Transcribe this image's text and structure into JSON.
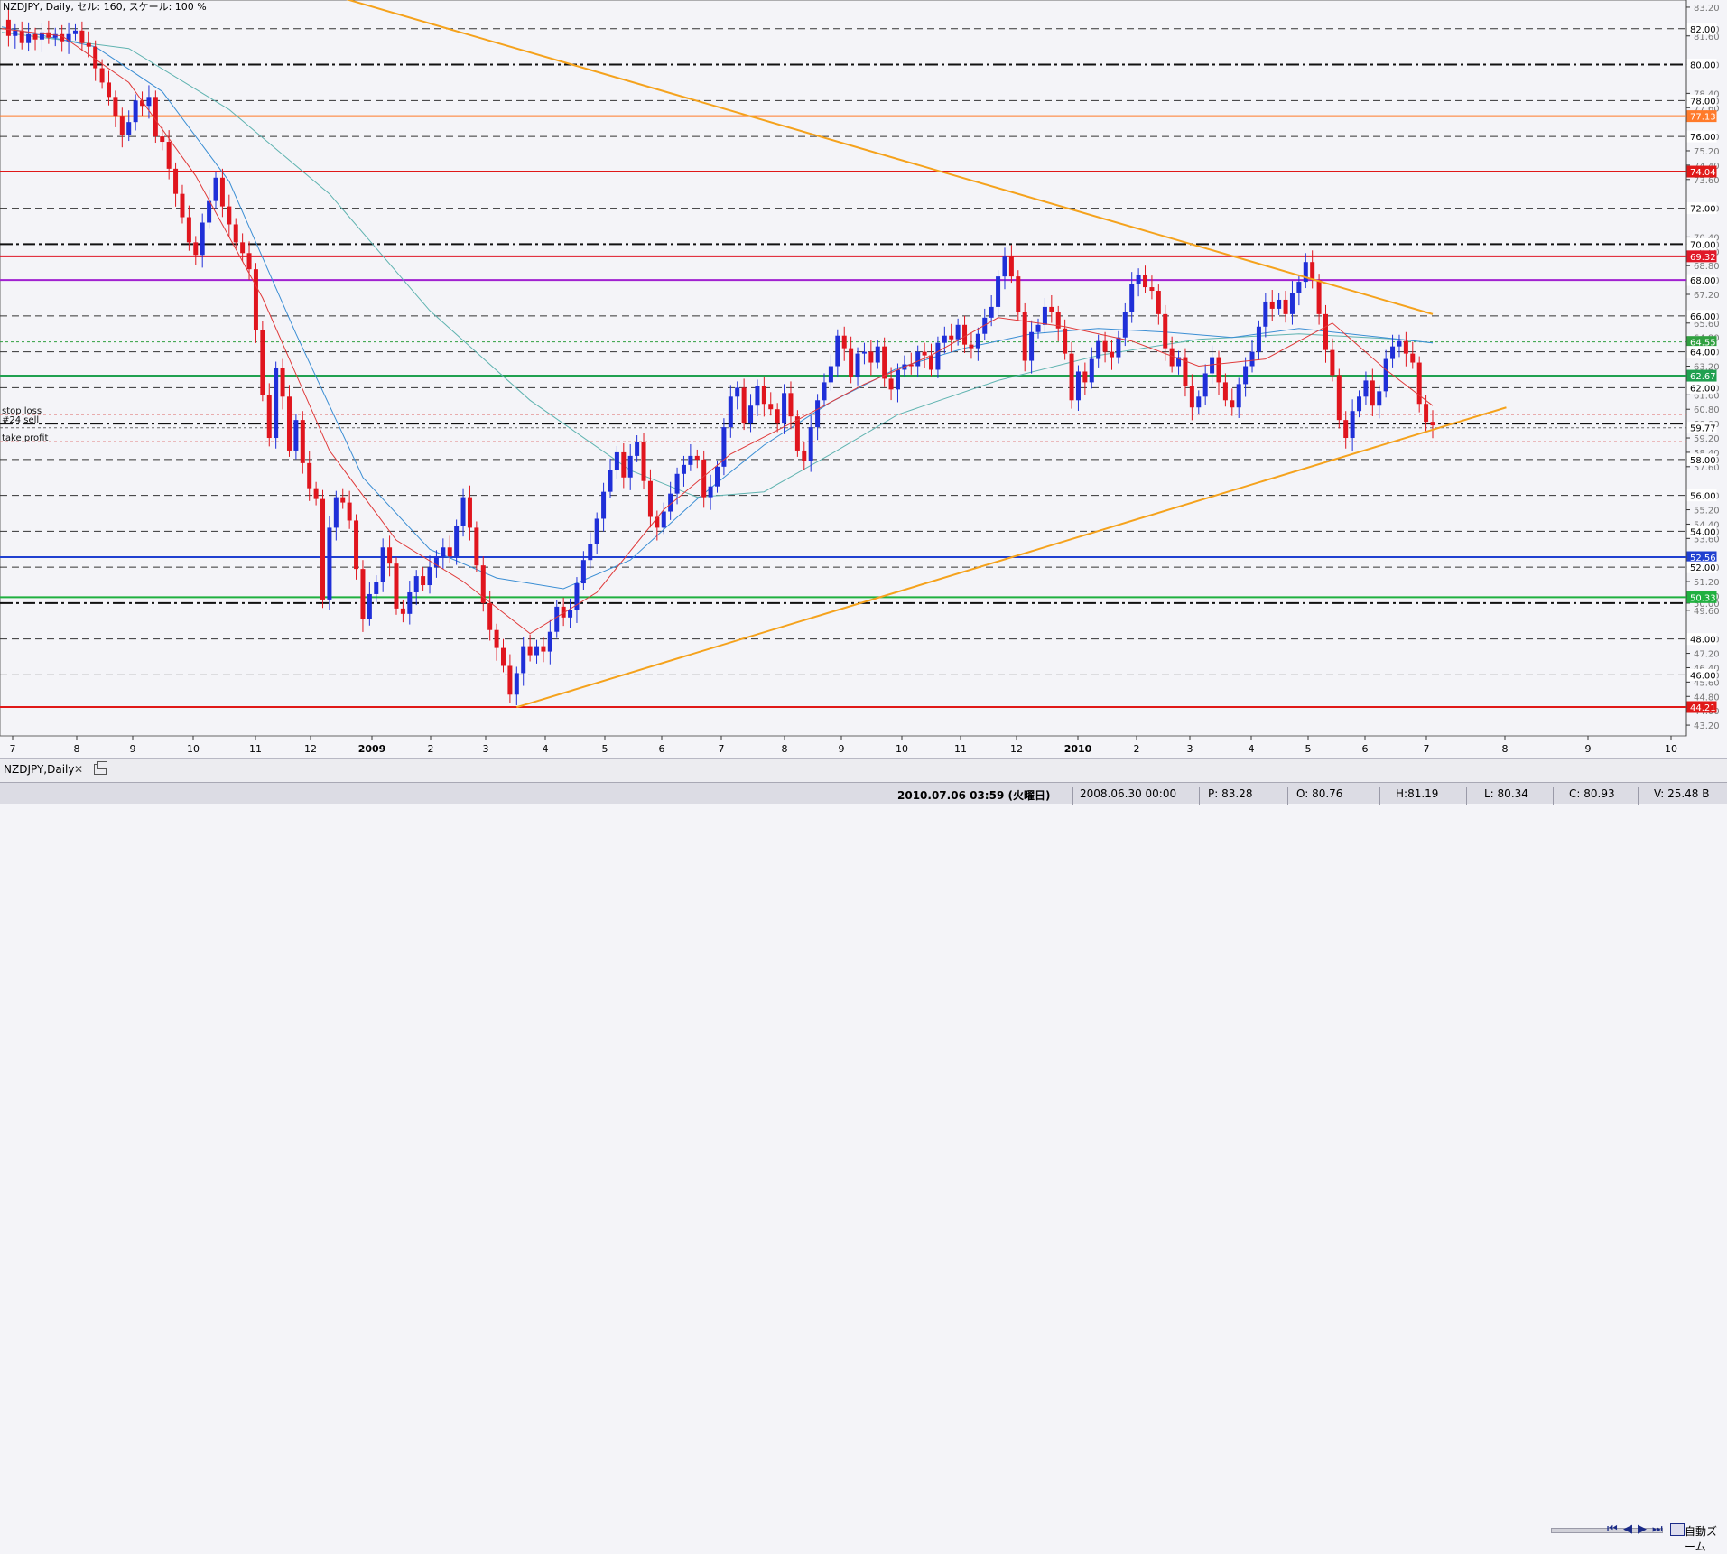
{
  "header": {
    "title": "NZDJPY, Daily, セル: 160, スケール: 100 %"
  },
  "tab": {
    "label": "NZDJPY,Daily",
    "close": "✕"
  },
  "navigation": {
    "first": "⏮",
    "prev": "◀",
    "next": "▶",
    "last": "⏭",
    "zoom_label": "自動ズーム"
  },
  "status": {
    "datetime": "2010.07.06 03:59 (火曜日)",
    "bar_time": "2008.06.30 00:00",
    "p": "P: 83.28",
    "o": "O: 80.76",
    "h": "H:81.19",
    "l": "L: 80.34",
    "c": "C: 80.93",
    "v": "V: 25.48 B"
  },
  "colors": {
    "background": "#f4f4f8",
    "candle_up": "#1f2fd8",
    "candle_down": "#e0151e",
    "trendline": "#f5a21c",
    "ma_fast": "#e03a3a",
    "ma_mid": "#3b8ed4",
    "ma_slow": "#5fb3b0"
  },
  "chart_data": {
    "type": "candlestick",
    "symbol": "NZDJPY",
    "timeframe": "Daily",
    "ylim": [
      42.6,
      83.6
    ],
    "y_ticks": [
      "83.20",
      "82.00",
      "81.60",
      "80.00",
      "78.40",
      "78.00",
      "77.60",
      "76.00",
      "75.20",
      "74.40",
      "73.60",
      "72.00",
      "70.40",
      "70.00",
      "69.60",
      "68.80",
      "68.00",
      "67.20",
      "66.00",
      "65.60",
      "64.80",
      "64.00",
      "63.20",
      "62.00",
      "61.60",
      "60.80",
      "60.00",
      "59.20",
      "58.40",
      "58.00",
      "57.60",
      "56.00",
      "55.20",
      "54.40",
      "54.00",
      "53.60",
      "52.00",
      "51.20",
      "50.40",
      "50.00",
      "49.60",
      "48.00",
      "47.20",
      "46.40",
      "46.00",
      "45.60",
      "44.80",
      "44.00",
      "43.20"
    ],
    "x_ticks": [
      "7",
      "8",
      "9",
      "10",
      "11",
      "12",
      "2009",
      "2",
      "3",
      "4",
      "5",
      "6",
      "7",
      "8",
      "9",
      "10",
      "11",
      "12",
      "2010",
      "2",
      "3",
      "4",
      "5",
      "6",
      "7",
      "8",
      "9",
      "10"
    ],
    "horizontal_levels": [
      {
        "price": 82.0,
        "style": "dash",
        "color": "#333333"
      },
      {
        "price": 80.0,
        "style": "dashdot-thick",
        "color": "#111111",
        "label": "80.00"
      },
      {
        "price": 78.0,
        "style": "dash",
        "color": "#333333"
      },
      {
        "price": 77.13,
        "style": "solid",
        "color": "#ff7a2a",
        "label": "77.13"
      },
      {
        "price": 76.0,
        "style": "dash",
        "color": "#333333"
      },
      {
        "price": 74.04,
        "style": "solid",
        "color": "#e01818",
        "label": "74.04"
      },
      {
        "price": 72.0,
        "style": "dash",
        "color": "#333333"
      },
      {
        "price": 70.0,
        "style": "dashdot-thick",
        "color": "#111111",
        "label": "70.00"
      },
      {
        "price": 69.32,
        "style": "solid",
        "color": "#e01828",
        "label": "69.32"
      },
      {
        "price": 68.0,
        "style": "solid",
        "color": "#a020d0",
        "label": "68.00"
      },
      {
        "price": 66.0,
        "style": "dash",
        "color": "#333333"
      },
      {
        "price": 64.55,
        "style": "dotted",
        "color": "#30a040",
        "label": "64.55"
      },
      {
        "price": 64.0,
        "style": "dash",
        "color": "#333333"
      },
      {
        "price": 62.67,
        "style": "solid",
        "color": "#20a050",
        "label": "62.67"
      },
      {
        "price": 62.0,
        "style": "dash",
        "color": "#333333"
      },
      {
        "price": 60.5,
        "style": "dotted",
        "color": "#e08080",
        "label": "stop loss"
      },
      {
        "price": 60.0,
        "style": "dashdot-thick",
        "color": "#111111",
        "label": "#24 sell"
      },
      {
        "price": 59.77,
        "style": "dotted",
        "color": "#666666",
        "label": "59.77"
      },
      {
        "price": 59.0,
        "style": "dotted",
        "color": "#e08080",
        "label": "take profit"
      },
      {
        "price": 58.0,
        "style": "dash",
        "color": "#333333"
      },
      {
        "price": 56.0,
        "style": "dash",
        "color": "#333333"
      },
      {
        "price": 54.0,
        "style": "dash",
        "color": "#333333"
      },
      {
        "price": 52.56,
        "style": "solid",
        "color": "#2040d0",
        "label": "52.56"
      },
      {
        "price": 52.0,
        "style": "dash",
        "color": "#333333"
      },
      {
        "price": 50.33,
        "style": "solid",
        "color": "#20b040",
        "label": "50.33"
      },
      {
        "price": 50.0,
        "style": "dashdot-thick",
        "color": "#111111"
      },
      {
        "price": 48.0,
        "style": "dash",
        "color": "#333333"
      },
      {
        "price": 46.0,
        "style": "dash",
        "color": "#333333"
      },
      {
        "price": 44.21,
        "style": "solid",
        "color": "#e01818",
        "label": "44.21"
      }
    ],
    "label_boxes": [
      {
        "price": 77.13,
        "text": "77.13",
        "bg": "#ff7a2a"
      },
      {
        "price": 74.04,
        "text": "74.04",
        "bg": "#e01818"
      },
      {
        "price": 69.32,
        "text": "69.32",
        "bg": "#e01828"
      },
      {
        "price": 68.0,
        "text": "68.00",
        "bg": "#ffffff"
      },
      {
        "price": 64.55,
        "text": "64.55",
        "bg": "#30a040"
      },
      {
        "price": 64.0,
        "text": "64.00",
        "bg": "#ffffff"
      },
      {
        "price": 62.67,
        "text": "62.67",
        "bg": "#20a050"
      },
      {
        "price": 62.0,
        "text": "62.00",
        "bg": "#ffffff"
      },
      {
        "price": 59.77,
        "text": "59.77",
        "bg": "#ffffff"
      },
      {
        "price": 58.0,
        "text": "58.00",
        "bg": "#ffffff"
      },
      {
        "price": 56.0,
        "text": "56.00",
        "bg": "#ffffff"
      },
      {
        "price": 54.0,
        "text": "54.00",
        "bg": "#ffffff"
      },
      {
        "price": 52.56,
        "text": "52.56",
        "bg": "#2040d0"
      },
      {
        "price": 52.0,
        "text": "52.00",
        "bg": "#ffffff"
      },
      {
        "price": 50.33,
        "text": "50.33",
        "bg": "#20b040"
      },
      {
        "price": 48.0,
        "text": "48.00",
        "bg": "#ffffff"
      },
      {
        "price": 46.0,
        "text": "46.00",
        "bg": "#ffffff"
      },
      {
        "price": 44.21,
        "text": "44.21",
        "bg": "#e01818"
      },
      {
        "price": 82.0,
        "text": "82.00",
        "bg": "#ffffff"
      },
      {
        "price": 80.0,
        "text": "80.00",
        "bg": "#ffffff"
      },
      {
        "price": 78.0,
        "text": "78.00",
        "bg": "#ffffff"
      },
      {
        "price": 76.0,
        "text": "76.00",
        "bg": "#ffffff"
      },
      {
        "price": 72.0,
        "text": "72.00",
        "bg": "#ffffff"
      },
      {
        "price": 70.0,
        "text": "70.00",
        "bg": "#ffffff"
      },
      {
        "price": 66.0,
        "text": "66.00",
        "bg": "#ffffff"
      }
    ],
    "price_path": [
      [
        1,
        82.5
      ],
      [
        2,
        81.6
      ],
      [
        3,
        81.9
      ],
      [
        4,
        81.2
      ],
      [
        5,
        81.7
      ],
      [
        6,
        81.4
      ],
      [
        7,
        81.8
      ],
      [
        8,
        81.5
      ],
      [
        9,
        81.7
      ],
      [
        10,
        81.3
      ],
      [
        11,
        81.7
      ],
      [
        12,
        81.9
      ],
      [
        13,
        81.2
      ],
      [
        14,
        81.0
      ],
      [
        15,
        79.8
      ],
      [
        16,
        79.0
      ],
      [
        17,
        78.2
      ],
      [
        18,
        77.1
      ],
      [
        19,
        76.1
      ],
      [
        20,
        76.8
      ],
      [
        21,
        78.0
      ],
      [
        22,
        77.7
      ],
      [
        23,
        78.2
      ],
      [
        24,
        76.0
      ],
      [
        25,
        75.7
      ],
      [
        26,
        74.2
      ],
      [
        27,
        72.8
      ],
      [
        28,
        71.5
      ],
      [
        29,
        70.1
      ],
      [
        30,
        69.4
      ],
      [
        31,
        71.2
      ],
      [
        32,
        72.4
      ],
      [
        33,
        73.7
      ],
      [
        34,
        72.1
      ],
      [
        35,
        71.1
      ],
      [
        36,
        70.1
      ],
      [
        37,
        69.5
      ],
      [
        38,
        68.6
      ],
      [
        39,
        65.2
      ],
      [
        40,
        61.6
      ],
      [
        41,
        59.2
      ],
      [
        42,
        63.1
      ],
      [
        43,
        61.5
      ],
      [
        44,
        58.5
      ],
      [
        45,
        60.2
      ],
      [
        46,
        57.8
      ],
      [
        47,
        56.4
      ],
      [
        48,
        55.8
      ],
      [
        49,
        50.2
      ],
      [
        50,
        54.2
      ],
      [
        51,
        55.9
      ],
      [
        52,
        55.6
      ],
      [
        53,
        54.6
      ],
      [
        54,
        51.9
      ],
      [
        55,
        49.1
      ],
      [
        56,
        50.5
      ],
      [
        57,
        51.2
      ],
      [
        58,
        53.1
      ],
      [
        59,
        52.2
      ],
      [
        60,
        49.7
      ],
      [
        61,
        49.4
      ],
      [
        62,
        50.6
      ],
      [
        63,
        51.5
      ],
      [
        64,
        51.0
      ],
      [
        65,
        52.0
      ],
      [
        66,
        52.6
      ],
      [
        67,
        53.1
      ],
      [
        68,
        52.6
      ],
      [
        69,
        54.3
      ],
      [
        70,
        55.9
      ],
      [
        71,
        54.2
      ],
      [
        72,
        52.1
      ],
      [
        73,
        50.0
      ],
      [
        74,
        48.5
      ],
      [
        75,
        47.5
      ],
      [
        76,
        46.5
      ],
      [
        77,
        44.9
      ],
      [
        78,
        46.1
      ],
      [
        79,
        47.6
      ],
      [
        80,
        47.1
      ],
      [
        81,
        47.6
      ],
      [
        82,
        47.3
      ],
      [
        83,
        48.4
      ],
      [
        84,
        49.8
      ],
      [
        85,
        49.2
      ],
      [
        86,
        49.6
      ],
      [
        87,
        51.1
      ],
      [
        88,
        52.4
      ],
      [
        89,
        53.3
      ],
      [
        90,
        54.7
      ],
      [
        91,
        56.2
      ],
      [
        92,
        57.4
      ],
      [
        93,
        58.4
      ],
      [
        94,
        57.0
      ],
      [
        95,
        58.2
      ],
      [
        96,
        59.0
      ],
      [
        97,
        56.8
      ],
      [
        98,
        54.8
      ],
      [
        99,
        54.2
      ],
      [
        100,
        55.1
      ],
      [
        101,
        56.1
      ],
      [
        102,
        57.2
      ],
      [
        103,
        57.7
      ],
      [
        104,
        58.2
      ],
      [
        105,
        58.0
      ],
      [
        106,
        55.9
      ],
      [
        107,
        56.5
      ],
      [
        108,
        57.6
      ],
      [
        109,
        59.8
      ],
      [
        110,
        61.5
      ],
      [
        111,
        62.0
      ],
      [
        112,
        60.0
      ],
      [
        113,
        61.0
      ],
      [
        114,
        62.1
      ],
      [
        115,
        61.1
      ],
      [
        116,
        60.8
      ],
      [
        117,
        60.0
      ],
      [
        118,
        61.7
      ],
      [
        119,
        60.4
      ],
      [
        120,
        58.5
      ],
      [
        121,
        57.9
      ],
      [
        122,
        59.8
      ],
      [
        123,
        61.3
      ],
      [
        124,
        62.3
      ],
      [
        125,
        63.2
      ],
      [
        126,
        64.9
      ],
      [
        127,
        64.2
      ],
      [
        128,
        62.6
      ],
      [
        129,
        63.9
      ],
      [
        130,
        64.0
      ],
      [
        131,
        63.4
      ],
      [
        132,
        64.3
      ],
      [
        133,
        62.5
      ],
      [
        134,
        61.9
      ],
      [
        135,
        63.0
      ],
      [
        136,
        63.3
      ],
      [
        137,
        63.2
      ],
      [
        138,
        64.0
      ],
      [
        139,
        63.8
      ],
      [
        140,
        63.0
      ],
      [
        141,
        64.5
      ],
      [
        142,
        64.9
      ],
      [
        143,
        64.7
      ],
      [
        144,
        65.5
      ],
      [
        145,
        64.4
      ],
      [
        146,
        64.2
      ],
      [
        147,
        65.0
      ],
      [
        148,
        65.9
      ],
      [
        149,
        66.5
      ],
      [
        150,
        68.2
      ],
      [
        151,
        69.3
      ],
      [
        152,
        68.2
      ],
      [
        153,
        66.2
      ],
      [
        154,
        63.5
      ],
      [
        155,
        65.1
      ],
      [
        156,
        65.5
      ],
      [
        157,
        66.5
      ],
      [
        158,
        66.2
      ],
      [
        159,
        65.3
      ],
      [
        160,
        63.9
      ],
      [
        161,
        61.3
      ],
      [
        162,
        62.9
      ],
      [
        163,
        62.3
      ],
      [
        164,
        63.6
      ],
      [
        165,
        64.6
      ],
      [
        166,
        64.0
      ],
      [
        167,
        63.7
      ],
      [
        168,
        64.8
      ],
      [
        169,
        66.2
      ],
      [
        170,
        67.8
      ],
      [
        171,
        68.3
      ],
      [
        172,
        67.6
      ],
      [
        173,
        67.4
      ],
      [
        174,
        66.1
      ],
      [
        175,
        64.2
      ],
      [
        176,
        63.2
      ],
      [
        177,
        63.7
      ],
      [
        178,
        62.1
      ],
      [
        179,
        60.9
      ],
      [
        180,
        61.5
      ],
      [
        181,
        62.8
      ],
      [
        182,
        63.7
      ],
      [
        183,
        62.3
      ],
      [
        184,
        61.3
      ],
      [
        185,
        60.9
      ],
      [
        186,
        62.2
      ],
      [
        187,
        63.2
      ],
      [
        188,
        64.0
      ],
      [
        189,
        65.4
      ],
      [
        190,
        66.8
      ],
      [
        191,
        66.4
      ],
      [
        192,
        66.9
      ],
      [
        193,
        66.1
      ],
      [
        194,
        67.3
      ],
      [
        195,
        67.9
      ],
      [
        196,
        69.0
      ],
      [
        197,
        68.0
      ],
      [
        198,
        66.1
      ],
      [
        199,
        64.1
      ],
      [
        200,
        62.7
      ],
      [
        201,
        60.2
      ],
      [
        202,
        59.2
      ],
      [
        203,
        60.7
      ],
      [
        204,
        61.5
      ],
      [
        205,
        62.4
      ],
      [
        206,
        61.0
      ],
      [
        207,
        61.8
      ],
      [
        208,
        63.6
      ],
      [
        209,
        64.3
      ],
      [
        210,
        64.6
      ],
      [
        211,
        63.9
      ],
      [
        212,
        63.4
      ],
      [
        213,
        61.1
      ],
      [
        214,
        60.1
      ],
      [
        215,
        59.9
      ]
    ],
    "ma_fast": [
      [
        1,
        82.0
      ],
      [
        10,
        81.6
      ],
      [
        20,
        79.0
      ],
      [
        30,
        73.8
      ],
      [
        40,
        67.0
      ],
      [
        50,
        58.5
      ],
      [
        60,
        53.5
      ],
      [
        70,
        51.2
      ],
      [
        80,
        48.3
      ],
      [
        90,
        50.6
      ],
      [
        100,
        55.2
      ],
      [
        110,
        58.3
      ],
      [
        120,
        60.2
      ],
      [
        130,
        62.2
      ],
      [
        140,
        63.8
      ],
      [
        150,
        65.9
      ],
      [
        160,
        65.4
      ],
      [
        170,
        64.6
      ],
      [
        180,
        63.2
      ],
      [
        190,
        63.6
      ],
      [
        200,
        65.6
      ],
      [
        208,
        63.0
      ],
      [
        215,
        61.0
      ]
    ],
    "ma_mid": [
      [
        1,
        82.1
      ],
      [
        15,
        81.0
      ],
      [
        25,
        78.5
      ],
      [
        35,
        73.5
      ],
      [
        45,
        65.0
      ],
      [
        55,
        57.0
      ],
      [
        65,
        53.0
      ],
      [
        75,
        51.4
      ],
      [
        85,
        50.8
      ],
      [
        95,
        52.4
      ],
      [
        105,
        55.8
      ],
      [
        115,
        58.8
      ],
      [
        125,
        61.2
      ],
      [
        135,
        63.1
      ],
      [
        145,
        64.2
      ],
      [
        155,
        65.0
      ],
      [
        165,
        65.3
      ],
      [
        175,
        65.1
      ],
      [
        185,
        64.8
      ],
      [
        195,
        65.3
      ],
      [
        205,
        64.9
      ],
      [
        215,
        64.5
      ]
    ],
    "ma_slow": [
      [
        1,
        81.8
      ],
      [
        20,
        80.9
      ],
      [
        35,
        77.5
      ],
      [
        50,
        72.8
      ],
      [
        65,
        66.3
      ],
      [
        80,
        61.3
      ],
      [
        95,
        57.4
      ],
      [
        105,
        55.9
      ],
      [
        115,
        56.2
      ],
      [
        125,
        58.3
      ],
      [
        135,
        60.5
      ],
      [
        150,
        62.4
      ],
      [
        165,
        63.8
      ],
      [
        180,
        64.7
      ],
      [
        195,
        65.0
      ],
      [
        210,
        64.7
      ],
      [
        215,
        64.5
      ]
    ],
    "trendlines": [
      {
        "from": [
          40,
          85.0
        ],
        "to": [
          215,
          66.1
        ],
        "color": "#f5a21c"
      },
      {
        "from": [
          78,
          44.2
        ],
        "to": [
          226,
          60.9
        ],
        "color": "#f5a21c"
      }
    ]
  }
}
